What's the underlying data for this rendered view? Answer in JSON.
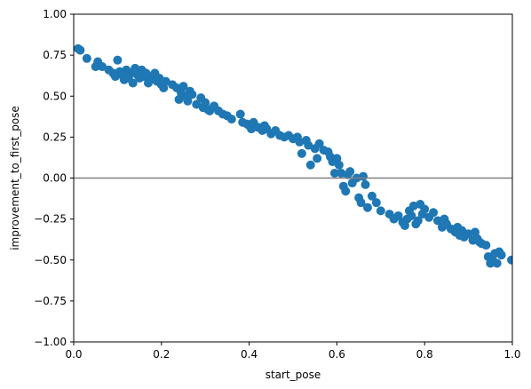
{
  "chart_data": {
    "type": "scatter",
    "title": "",
    "xlabel": "start_pose",
    "ylabel": "improvement_to_first_pose",
    "xlim": [
      0,
      1
    ],
    "ylim": [
      -1,
      1
    ],
    "xticks": [
      0,
      0.2,
      0.4,
      0.6,
      0.8,
      1.0
    ],
    "xtick_labels": [
      "0.0",
      "0.2",
      "0.4",
      "0.6",
      "0.8",
      "1.0"
    ],
    "yticks": [
      -1,
      -0.75,
      -0.5,
      -0.25,
      0,
      0.25,
      0.5,
      0.75,
      1
    ],
    "ytick_labels": [
      "−1.00",
      "−0.75",
      "−0.50",
      "−0.25",
      "0.00",
      "0.25",
      "0.50",
      "0.75",
      "1.00"
    ],
    "grid": false,
    "legend": "none",
    "colors": {
      "points": "#1f77b4",
      "reference_line": "#808080",
      "axes": "#000000"
    },
    "reference_line": {
      "orientation": "horizontal",
      "y": 0
    },
    "series": [
      {
        "points": [
          [
            0.01,
            0.79
          ],
          [
            0.015,
            0.78
          ],
          [
            0.03,
            0.73
          ],
          [
            0.05,
            0.68
          ],
          [
            0.055,
            0.71
          ],
          [
            0.065,
            0.68
          ],
          [
            0.08,
            0.66
          ],
          [
            0.09,
            0.64
          ],
          [
            0.095,
            0.62
          ],
          [
            0.1,
            0.72
          ],
          [
            0.105,
            0.65
          ],
          [
            0.11,
            0.63
          ],
          [
            0.115,
            0.6
          ],
          [
            0.12,
            0.66
          ],
          [
            0.125,
            0.61
          ],
          [
            0.13,
            0.64
          ],
          [
            0.135,
            0.58
          ],
          [
            0.14,
            0.67
          ],
          [
            0.145,
            0.63
          ],
          [
            0.15,
            0.61
          ],
          [
            0.155,
            0.66
          ],
          [
            0.16,
            0.62
          ],
          [
            0.165,
            0.64
          ],
          [
            0.17,
            0.58
          ],
          [
            0.175,
            0.6
          ],
          [
            0.18,
            0.62
          ],
          [
            0.185,
            0.64
          ],
          [
            0.19,
            0.59
          ],
          [
            0.195,
            0.61
          ],
          [
            0.2,
            0.57
          ],
          [
            0.205,
            0.55
          ],
          [
            0.21,
            0.59
          ],
          [
            0.225,
            0.57
          ],
          [
            0.235,
            0.55
          ],
          [
            0.24,
            0.48
          ],
          [
            0.245,
            0.52
          ],
          [
            0.25,
            0.56
          ],
          [
            0.255,
            0.5
          ],
          [
            0.26,
            0.47
          ],
          [
            0.265,
            0.53
          ],
          [
            0.27,
            0.51
          ],
          [
            0.28,
            0.45
          ],
          [
            0.29,
            0.49
          ],
          [
            0.295,
            0.43
          ],
          [
            0.3,
            0.46
          ],
          [
            0.305,
            0.42
          ],
          [
            0.31,
            0.41
          ],
          [
            0.32,
            0.44
          ],
          [
            0.33,
            0.41
          ],
          [
            0.34,
            0.39
          ],
          [
            0.35,
            0.38
          ],
          [
            0.36,
            0.36
          ],
          [
            0.38,
            0.39
          ],
          [
            0.385,
            0.34
          ],
          [
            0.395,
            0.33
          ],
          [
            0.4,
            0.32
          ],
          [
            0.405,
            0.3
          ],
          [
            0.41,
            0.34
          ],
          [
            0.42,
            0.31
          ],
          [
            0.43,
            0.29
          ],
          [
            0.435,
            0.32
          ],
          [
            0.44,
            0.3
          ],
          [
            0.45,
            0.27
          ],
          [
            0.46,
            0.29
          ],
          [
            0.47,
            0.26
          ],
          [
            0.48,
            0.25
          ],
          [
            0.49,
            0.26
          ],
          [
            0.5,
            0.24
          ],
          [
            0.51,
            0.25
          ],
          [
            0.515,
            0.22
          ],
          [
            0.52,
            0.15
          ],
          [
            0.53,
            0.23
          ],
          [
            0.535,
            0.2
          ],
          [
            0.54,
            0.08
          ],
          [
            0.55,
            0.18
          ],
          [
            0.555,
            0.12
          ],
          [
            0.56,
            0.21
          ],
          [
            0.57,
            0.17
          ],
          [
            0.58,
            0.16
          ],
          [
            0.585,
            0.13
          ],
          [
            0.59,
            0.1
          ],
          [
            0.595,
            0.03
          ],
          [
            0.6,
            0.12
          ],
          [
            0.605,
            0.08
          ],
          [
            0.61,
            0.03
          ],
          [
            0.615,
            -0.05
          ],
          [
            0.62,
            -0.08
          ],
          [
            0.625,
            0.02
          ],
          [
            0.63,
            0.04
          ],
          [
            0.635,
            -0.03
          ],
          [
            0.645,
            0.0
          ],
          [
            0.65,
            -0.12
          ],
          [
            0.655,
            -0.15
          ],
          [
            0.66,
            0.01
          ],
          [
            0.665,
            -0.04
          ],
          [
            0.67,
            -0.18
          ],
          [
            0.68,
            -0.11
          ],
          [
            0.69,
            -0.15
          ],
          [
            0.7,
            -0.2
          ],
          [
            0.72,
            -0.22
          ],
          [
            0.73,
            -0.25
          ],
          [
            0.74,
            -0.23
          ],
          [
            0.75,
            -0.27
          ],
          [
            0.755,
            -0.29
          ],
          [
            0.76,
            -0.25
          ],
          [
            0.765,
            -0.2
          ],
          [
            0.77,
            -0.23
          ],
          [
            0.775,
            -0.17
          ],
          [
            0.78,
            -0.28
          ],
          [
            0.785,
            -0.26
          ],
          [
            0.79,
            -0.16
          ],
          [
            0.795,
            -0.22
          ],
          [
            0.8,
            -0.19
          ],
          [
            0.81,
            -0.24
          ],
          [
            0.82,
            -0.21
          ],
          [
            0.83,
            -0.26
          ],
          [
            0.84,
            -0.3
          ],
          [
            0.845,
            -0.25
          ],
          [
            0.85,
            -0.28
          ],
          [
            0.86,
            -0.31
          ],
          [
            0.87,
            -0.33
          ],
          [
            0.875,
            -0.3
          ],
          [
            0.88,
            -0.35
          ],
          [
            0.885,
            -0.32
          ],
          [
            0.89,
            -0.36
          ],
          [
            0.9,
            -0.34
          ],
          [
            0.91,
            -0.38
          ],
          [
            0.915,
            -0.33
          ],
          [
            0.92,
            -0.37
          ],
          [
            0.925,
            -0.39
          ],
          [
            0.93,
            -0.4
          ],
          [
            0.94,
            -0.41
          ],
          [
            0.945,
            -0.48
          ],
          [
            0.95,
            -0.52
          ],
          [
            0.955,
            -0.5
          ],
          [
            0.96,
            -0.46
          ],
          [
            0.965,
            -0.52
          ],
          [
            0.97,
            -0.45
          ],
          [
            0.975,
            -0.47
          ],
          [
            0.998,
            -0.5
          ]
        ]
      }
    ]
  }
}
